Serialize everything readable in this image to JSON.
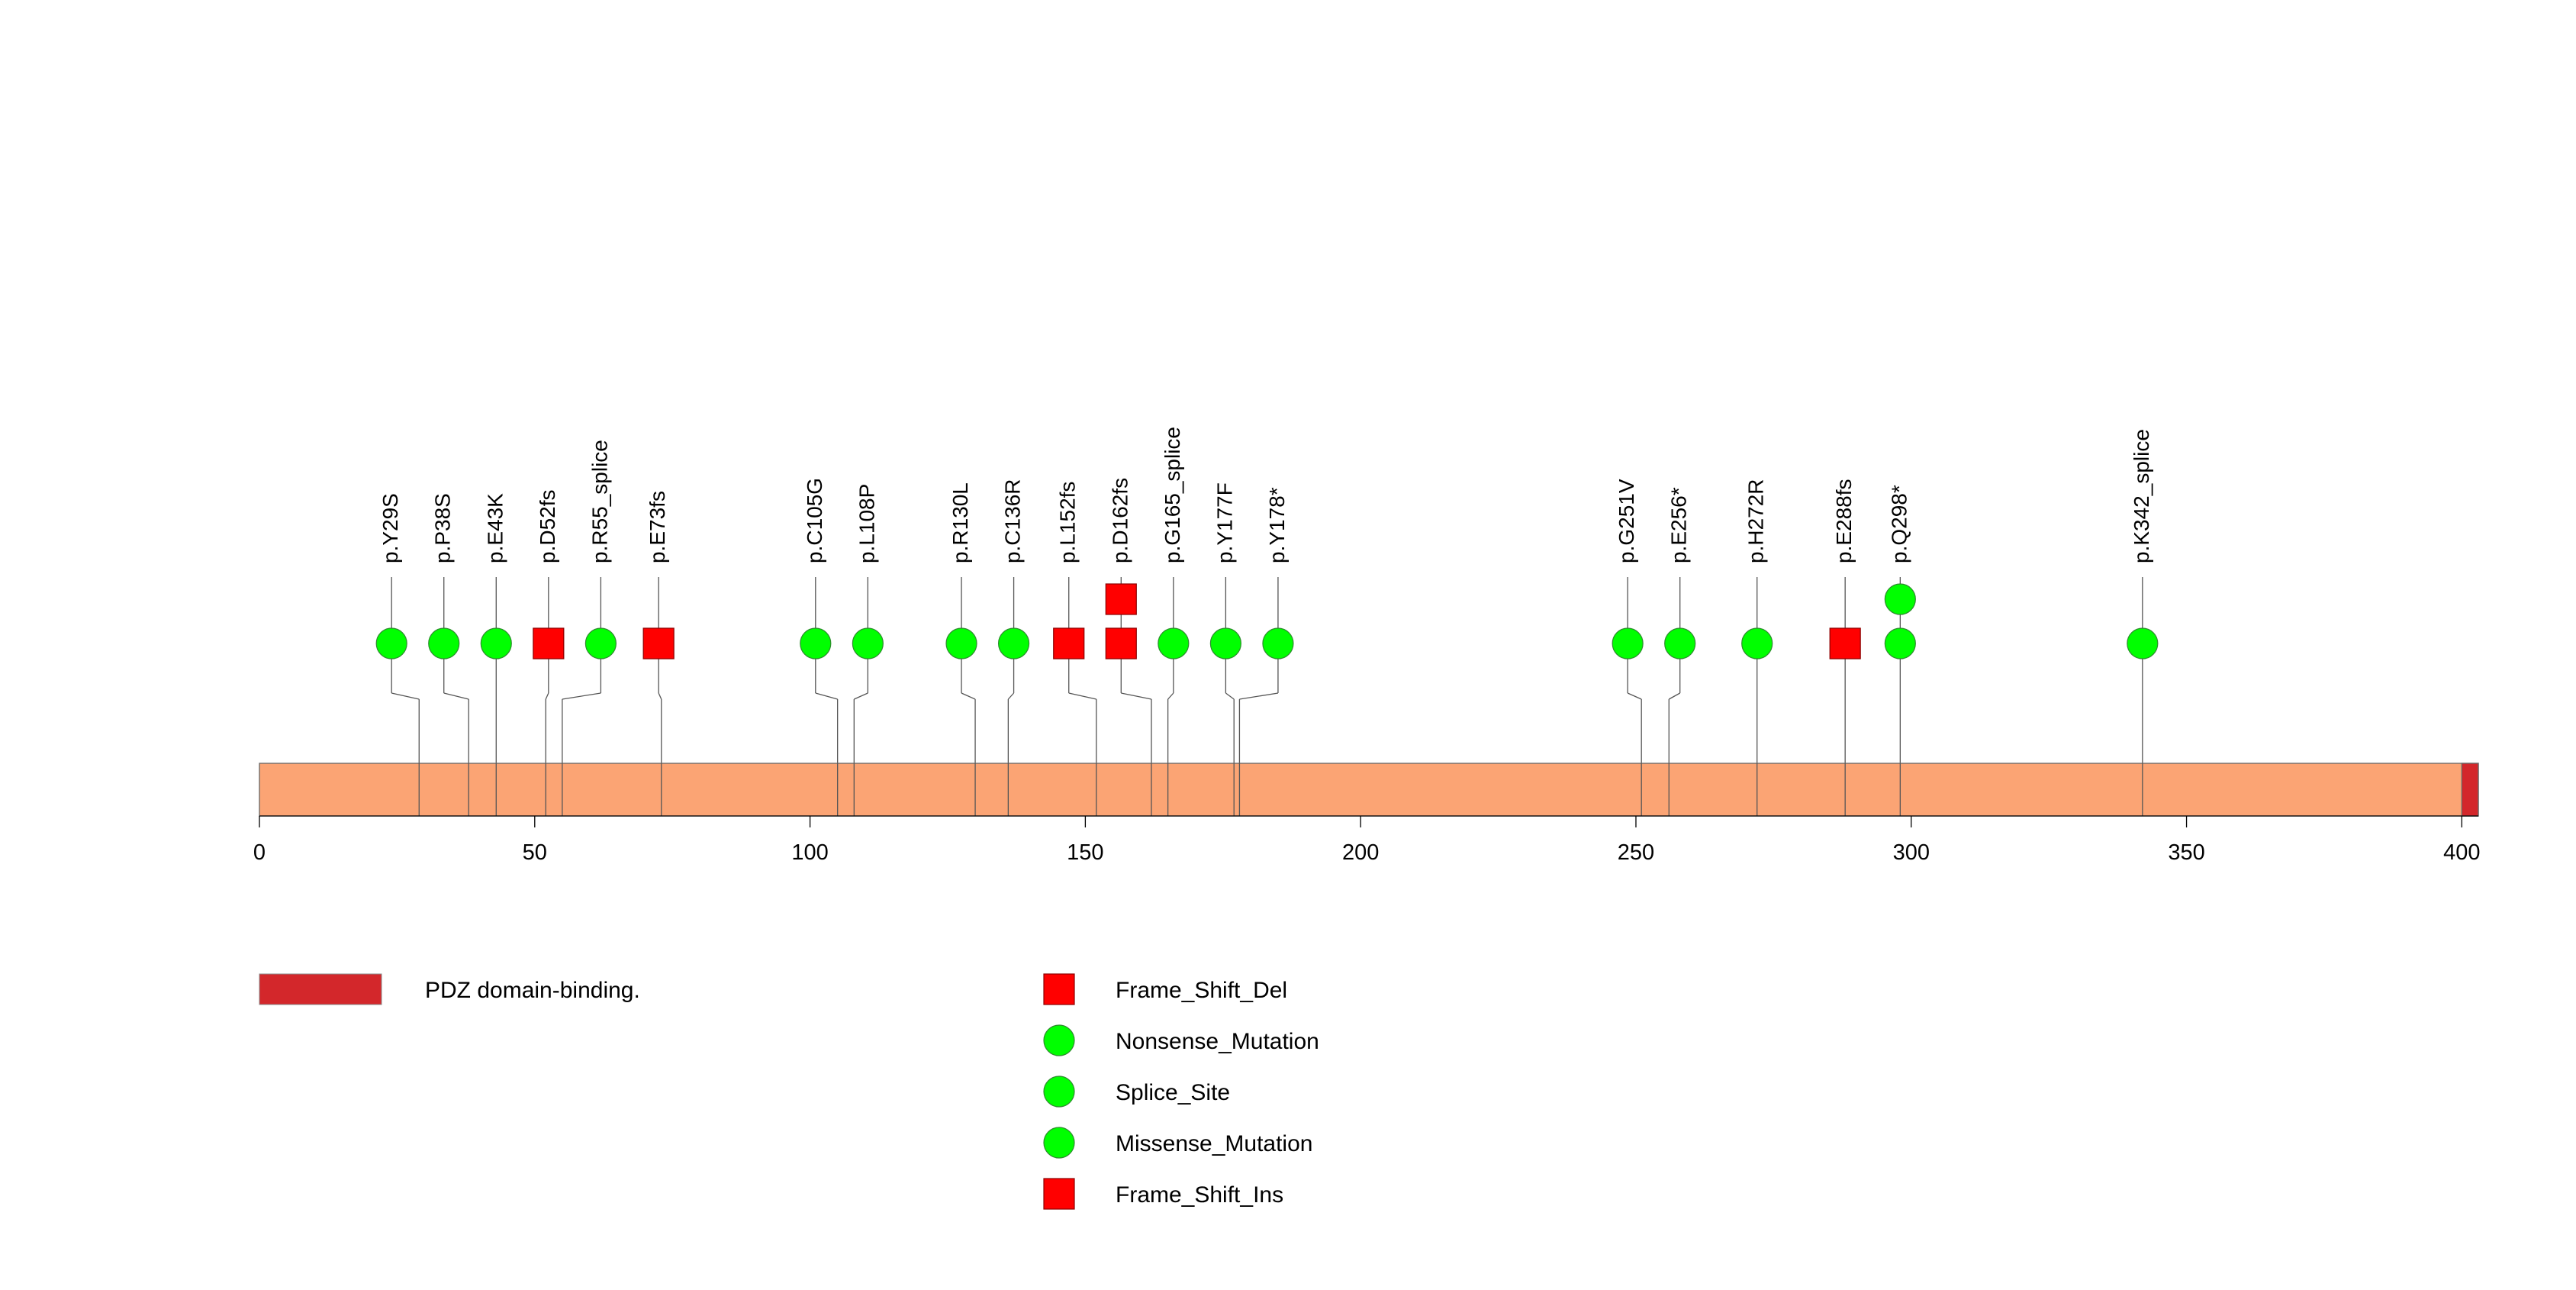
{
  "chart_data": {
    "type": "lollipop",
    "protein_length": 403,
    "xlim": [
      0,
      403
    ],
    "x_ticks": [
      0,
      50,
      100,
      150,
      200,
      250,
      300,
      350,
      400
    ],
    "domains": [
      {
        "name": "PDZ domain-binding.",
        "start": 400,
        "end": 403,
        "color": "#D3272B"
      }
    ],
    "backbone_color": "#FBA474",
    "mutations": [
      {
        "label": "p.Y29S",
        "position": 29,
        "label_position": 24,
        "stack": [
          {
            "type": "Missense_Mutation",
            "count": 1
          }
        ]
      },
      {
        "label": "p.P38S",
        "position": 38,
        "label_position": 33.5,
        "stack": [
          {
            "type": "Missense_Mutation",
            "count": 1
          }
        ]
      },
      {
        "label": "p.E43K",
        "position": 43,
        "label_position": 43,
        "stack": [
          {
            "type": "Missense_Mutation",
            "count": 1
          }
        ]
      },
      {
        "label": "p.D52fs",
        "position": 52,
        "label_position": 52.5,
        "stack": [
          {
            "type": "Frame_Shift_Del",
            "count": 1
          }
        ]
      },
      {
        "label": "p.R55_splice",
        "position": 55,
        "label_position": 62,
        "stack": [
          {
            "type": "Splice_Site",
            "count": 1
          }
        ]
      },
      {
        "label": "p.E73fs",
        "position": 73,
        "label_position": 72.5,
        "stack": [
          {
            "type": "Frame_Shift_Del",
            "count": 1
          }
        ]
      },
      {
        "label": "p.C105G",
        "position": 105,
        "label_position": 101,
        "stack": [
          {
            "type": "Missense_Mutation",
            "count": 1
          }
        ]
      },
      {
        "label": "p.L108P",
        "position": 108,
        "label_position": 110.5,
        "stack": [
          {
            "type": "Missense_Mutation",
            "count": 1
          }
        ]
      },
      {
        "label": "p.R130L",
        "position": 130,
        "label_position": 127.5,
        "stack": [
          {
            "type": "Missense_Mutation",
            "count": 1
          }
        ]
      },
      {
        "label": "p.C136R",
        "position": 136,
        "label_position": 137,
        "stack": [
          {
            "type": "Missense_Mutation",
            "count": 1
          }
        ]
      },
      {
        "label": "p.L152fs",
        "position": 152,
        "label_position": 147,
        "stack": [
          {
            "type": "Frame_Shift_Del",
            "count": 1
          }
        ]
      },
      {
        "label": "p.D162fs",
        "position": 162,
        "label_position": 156.5,
        "stack": [
          {
            "type": "Frame_Shift_Del",
            "count": 1
          },
          {
            "type": "Frame_Shift_Ins",
            "count": 1
          }
        ]
      },
      {
        "label": "p.G165_splice",
        "position": 165,
        "label_position": 166,
        "stack": [
          {
            "type": "Splice_Site",
            "count": 1
          }
        ]
      },
      {
        "label": "p.Y177F",
        "position": 177,
        "label_position": 175.5,
        "stack": [
          {
            "type": "Missense_Mutation",
            "count": 1
          }
        ]
      },
      {
        "label": "p.Y178*",
        "position": 178,
        "label_position": 185,
        "stack": [
          {
            "type": "Nonsense_Mutation",
            "count": 1
          }
        ]
      },
      {
        "label": "p.G251V",
        "position": 251,
        "label_position": 248.5,
        "stack": [
          {
            "type": "Missense_Mutation",
            "count": 1
          }
        ]
      },
      {
        "label": "p.E256*",
        "position": 256,
        "label_position": 258,
        "stack": [
          {
            "type": "Nonsense_Mutation",
            "count": 1
          }
        ]
      },
      {
        "label": "p.H272R",
        "position": 272,
        "label_position": 272,
        "stack": [
          {
            "type": "Missense_Mutation",
            "count": 1
          }
        ]
      },
      {
        "label": "p.E288fs",
        "position": 288,
        "label_position": 288,
        "stack": [
          {
            "type": "Frame_Shift_Del",
            "count": 1
          }
        ]
      },
      {
        "label": "p.Q298*",
        "position": 298,
        "label_position": 298,
        "stack": [
          {
            "type": "Nonsense_Mutation",
            "count": 1
          },
          {
            "type": "Nonsense_Mutation",
            "count": 1
          }
        ]
      },
      {
        "label": "p.K342_splice",
        "position": 342,
        "label_position": 342,
        "stack": [
          {
            "type": "Splice_Site",
            "count": 1
          }
        ]
      }
    ],
    "legend": {
      "domains": [
        {
          "name": "PDZ domain-binding.",
          "color": "#D3272B"
        }
      ],
      "mutation_types": [
        {
          "name": "Frame_Shift_Del",
          "shape": "square",
          "color": "#FF0000"
        },
        {
          "name": "Nonsense_Mutation",
          "shape": "circle",
          "color": "#00FF00"
        },
        {
          "name": "Splice_Site",
          "shape": "circle",
          "color": "#00FF00"
        },
        {
          "name": "Missense_Mutation",
          "shape": "circle",
          "color": "#00FF00"
        },
        {
          "name": "Frame_Shift_Ins",
          "shape": "square",
          "color": "#FF0000"
        }
      ]
    }
  }
}
